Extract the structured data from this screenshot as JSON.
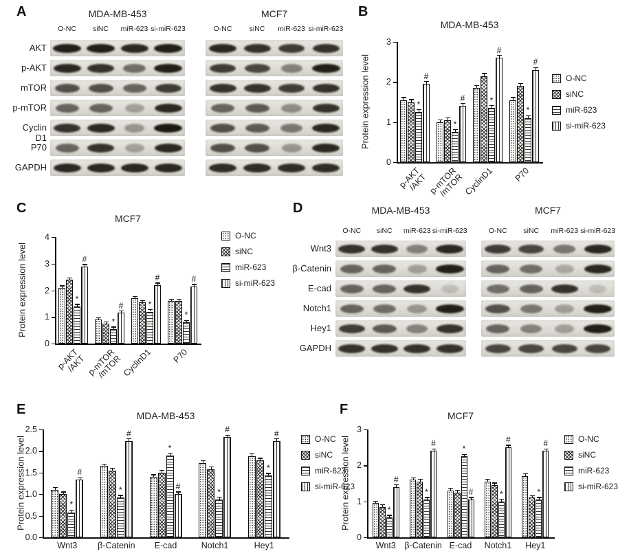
{
  "panels": {
    "A": {
      "label": "A"
    },
    "B": {
      "label": "B"
    },
    "C": {
      "label": "C"
    },
    "D": {
      "label": "D"
    },
    "E": {
      "label": "E"
    },
    "F": {
      "label": "F"
    }
  },
  "lane_labels": [
    "O-NC",
    "siNC",
    "miR-623",
    "si-miR-623"
  ],
  "blots": [
    {
      "panel": "A",
      "titles": [
        "MDA-MB-453",
        "MCF7"
      ],
      "lanes": [
        "O-NC",
        "siNC",
        "miR-623",
        "si-miR-623"
      ],
      "rows": [
        {
          "label": "AKT",
          "bands": [
            [
              0.95,
              0.95,
              0.9,
              0.95
            ],
            [
              0.9,
              0.85,
              0.8,
              0.85
            ]
          ]
        },
        {
          "label": "p-AKT",
          "bands": [
            [
              0.9,
              0.85,
              0.55,
              0.95
            ],
            [
              0.8,
              0.75,
              0.45,
              0.95
            ]
          ]
        },
        {
          "label": "mTOR",
          "bands": [
            [
              0.7,
              0.7,
              0.6,
              0.8
            ],
            [
              0.85,
              0.85,
              0.8,
              0.85
            ]
          ]
        },
        {
          "label": "p-mTOR",
          "bands": [
            [
              0.6,
              0.6,
              0.3,
              0.9
            ],
            [
              0.6,
              0.65,
              0.4,
              0.85
            ]
          ]
        },
        {
          "label": "Cyclin D1",
          "bands": [
            [
              0.85,
              0.9,
              0.35,
              0.98
            ],
            [
              0.7,
              0.65,
              0.5,
              0.9
            ]
          ]
        },
        {
          "label": "P70",
          "bands": [
            [
              0.6,
              0.85,
              0.3,
              0.9
            ],
            [
              0.7,
              0.7,
              0.35,
              0.9
            ]
          ]
        },
        {
          "label": "GAPDH",
          "bands": [
            [
              0.9,
              0.9,
              0.9,
              0.9
            ],
            [
              0.88,
              0.88,
              0.88,
              0.88
            ]
          ]
        }
      ]
    },
    {
      "panel": "D",
      "titles": [
        "MDA-MB-453",
        "MCF7"
      ],
      "lanes": [
        "O-NC",
        "siNC",
        "miR-623",
        "si-miR-623"
      ],
      "rows": [
        {
          "label": "Wnt3",
          "bands": [
            [
              0.85,
              0.85,
              0.45,
              0.9
            ],
            [
              0.8,
              0.75,
              0.5,
              0.9
            ]
          ]
        },
        {
          "label": "β-Catenin",
          "bands": [
            [
              0.6,
              0.6,
              0.3,
              0.95
            ],
            [
              0.6,
              0.55,
              0.25,
              0.9
            ]
          ]
        },
        {
          "label": "E-cad",
          "bands": [
            [
              0.6,
              0.6,
              0.85,
              0.15
            ],
            [
              0.55,
              0.6,
              0.85,
              0.15
            ]
          ]
        },
        {
          "label": "Notch1",
          "bands": [
            [
              0.6,
              0.55,
              0.35,
              0.95
            ],
            [
              0.7,
              0.5,
              0.3,
              0.95
            ]
          ]
        },
        {
          "label": "Hey1",
          "bands": [
            [
              0.8,
              0.65,
              0.45,
              0.85
            ],
            [
              0.6,
              0.45,
              0.3,
              0.95
            ]
          ]
        },
        {
          "label": "GAPDH",
          "bands": [
            [
              0.85,
              0.85,
              0.85,
              0.85
            ],
            [
              0.75,
              0.75,
              0.75,
              0.75
            ]
          ]
        }
      ]
    }
  ],
  "chart_data": [
    {
      "id": "B",
      "type": "bar",
      "title": "MDA-MB-453",
      "ylabel": "Protein expression level",
      "ylim": [
        0,
        3
      ],
      "yticks": [
        "0",
        "1",
        "2",
        "3"
      ],
      "rotate_xticks": true,
      "error_approx": 0.06,
      "categories": [
        "p-AKT\n/AKT",
        "p-mTOR\n/mTOR",
        "CyclinD1",
        "P70"
      ],
      "series": [
        {
          "name": "O-NC",
          "pattern": "dots",
          "marker": "",
          "values": [
            1.55,
            1.0,
            1.85,
            1.55
          ]
        },
        {
          "name": "siNC",
          "pattern": "check",
          "marker": "",
          "values": [
            1.5,
            1.05,
            2.15,
            1.9
          ]
        },
        {
          "name": "miR-623",
          "pattern": "hlines",
          "marker": "*",
          "values": [
            1.25,
            0.75,
            1.35,
            1.1
          ]
        },
        {
          "name": "si-miR-623",
          "pattern": "vlines",
          "marker": "#",
          "values": [
            1.95,
            1.4,
            2.6,
            2.3
          ]
        }
      ]
    },
    {
      "id": "C",
      "type": "bar",
      "title": "MCF7",
      "ylabel": "Protein expression level",
      "ylim": [
        0,
        4
      ],
      "yticks": [
        "0",
        "1",
        "2",
        "3",
        "4"
      ],
      "rotate_xticks": true,
      "error_approx": 0.07,
      "categories": [
        "p-AKT\n/AKT",
        "p-mTOR\n/mTOR",
        "CyclinD1",
        "P70"
      ],
      "series": [
        {
          "name": "O-NC",
          "pattern": "dots",
          "marker": "",
          "values": [
            2.1,
            0.9,
            1.7,
            1.6
          ]
        },
        {
          "name": "siNC",
          "pattern": "check",
          "marker": "",
          "values": [
            2.4,
            0.75,
            1.55,
            1.6
          ]
        },
        {
          "name": "miR-623",
          "pattern": "hlines",
          "marker": "*",
          "values": [
            1.4,
            0.55,
            1.2,
            0.8
          ]
        },
        {
          "name": "si-miR-623",
          "pattern": "vlines",
          "marker": "#",
          "values": [
            2.9,
            1.15,
            2.2,
            2.15
          ]
        }
      ]
    },
    {
      "id": "E",
      "type": "bar",
      "title": "MDA-MB-453",
      "ylabel": "Protein expression level",
      "ylim": [
        0,
        2.5
      ],
      "yticks": [
        "0.0",
        "0.5",
        "1.0",
        "1.5",
        "2.0",
        "2.5"
      ],
      "rotate_xticks": false,
      "error_approx": 0.05,
      "categories": [
        "Wnt3",
        "β-Catenin",
        "E-cad",
        "Notch1",
        "Hey1"
      ],
      "series": [
        {
          "name": "O-NC",
          "pattern": "dots",
          "marker": "",
          "values": [
            1.1,
            1.65,
            1.4,
            1.72,
            1.88
          ]
        },
        {
          "name": "siNC",
          "pattern": "check",
          "marker": "",
          "values": [
            1.0,
            1.55,
            1.5,
            1.58,
            1.78
          ]
        },
        {
          "name": "miR-623",
          "pattern": "hlines",
          "marker": "*",
          "values": [
            0.58,
            0.92,
            1.9,
            0.88,
            1.43
          ]
        },
        {
          "name": "si-miR-623",
          "pattern": "vlines",
          "marker": "#",
          "values": [
            1.33,
            2.23,
            1.0,
            2.32,
            2.23
          ]
        }
      ]
    },
    {
      "id": "F",
      "type": "bar",
      "title": "MCF7",
      "ylabel": "Protein expression level",
      "ylim": [
        0,
        3
      ],
      "yticks": [
        "0",
        "1",
        "2",
        "3"
      ],
      "rotate_xticks": false,
      "error_approx": 0.06,
      "categories": [
        "Wnt3",
        "β-Catenin",
        "E-cad",
        "Notch1",
        "Hey1"
      ],
      "series": [
        {
          "name": "O-NC",
          "pattern": "dots",
          "marker": "",
          "values": [
            0.95,
            1.6,
            1.3,
            1.55,
            1.7
          ]
        },
        {
          "name": "siNC",
          "pattern": "check",
          "marker": "",
          "values": [
            0.85,
            1.55,
            1.25,
            1.45,
            1.1
          ]
        },
        {
          "name": "miR-623",
          "pattern": "hlines",
          "marker": "*",
          "values": [
            0.55,
            1.05,
            2.25,
            1.0,
            1.05
          ]
        },
        {
          "name": "si-miR-623",
          "pattern": "vlines",
          "marker": "#",
          "values": [
            1.4,
            2.4,
            1.05,
            2.5,
            2.4
          ]
        }
      ]
    }
  ]
}
